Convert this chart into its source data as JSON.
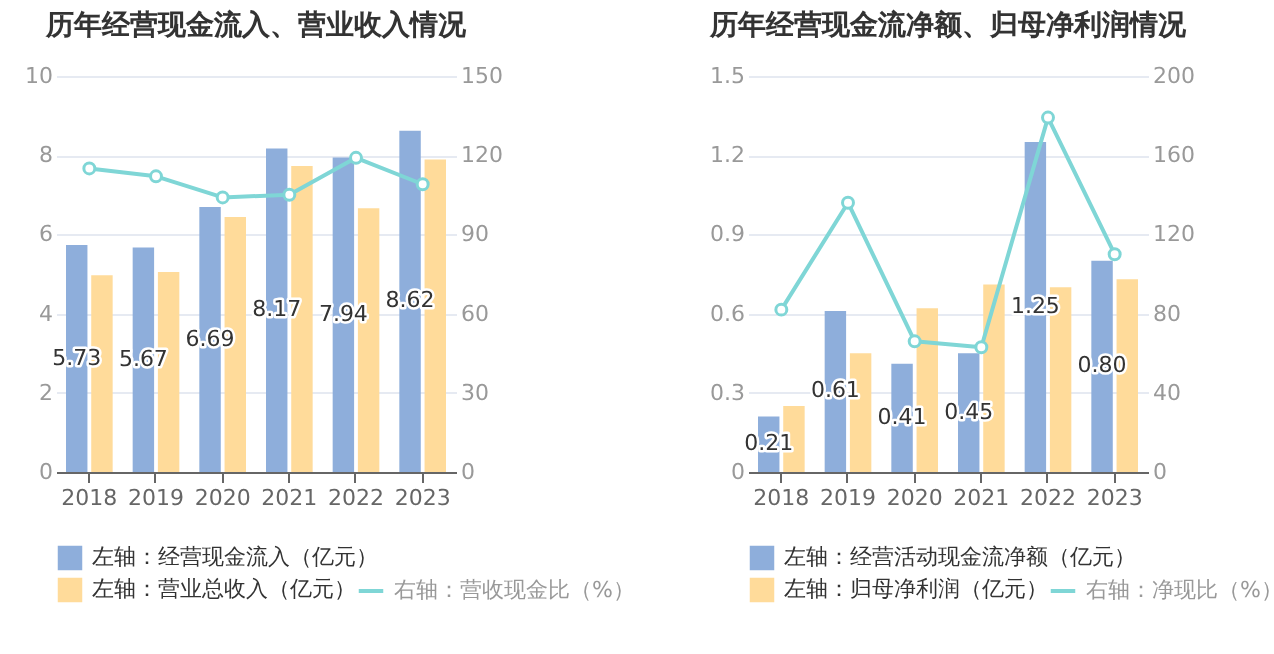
{
  "chart_data": [
    {
      "type": "bar",
      "title": "历年经营现金流入、营业收入情况",
      "categories": [
        "2018",
        "2019",
        "2020",
        "2021",
        "2022",
        "2023"
      ],
      "ylim": [
        0,
        10
      ],
      "yticks": [
        0,
        2,
        4,
        6,
        8,
        10
      ],
      "y2lim": [
        0,
        150
      ],
      "y2ticks": [
        0,
        30,
        60,
        90,
        120,
        150
      ],
      "grid": "y",
      "legend": "bottom",
      "marker": "circle",
      "series": [
        {
          "name": "左轴：经营现金流入（亿元）",
          "color": "#8eaedb",
          "values": [
            5.73,
            5.67,
            6.69,
            8.17,
            7.94,
            8.62
          ],
          "value_labels": [
            "5.73",
            "5.67",
            "6.69",
            "8.17",
            "7.94",
            "8.62"
          ]
        },
        {
          "name": "左轴：营业总收入（亿元）",
          "color": "#ffdb9a",
          "values": [
            4.97,
            5.05,
            6.44,
            7.73,
            6.66,
            7.89
          ]
        },
        {
          "name": "右轴：营收现金比（%）",
          "color": "#7fd6d6",
          "type": "line",
          "axis": "y2",
          "values": [
            115,
            112,
            104,
            105,
            119,
            109
          ]
        }
      ]
    },
    {
      "type": "bar",
      "title": "历年经营现金流净额、归母净利润情况",
      "categories": [
        "2018",
        "2019",
        "2020",
        "2021",
        "2022",
        "2023"
      ],
      "ylim": [
        0,
        1.5
      ],
      "yticks": [
        0,
        0.3,
        0.6,
        0.9,
        1.2,
        1.5
      ],
      "y2lim": [
        0,
        200
      ],
      "y2ticks": [
        0,
        40,
        80,
        120,
        160,
        200
      ],
      "grid": "y",
      "legend": "bottom",
      "marker": "circle",
      "series": [
        {
          "name": "左轴：经营活动现金流净额（亿元）",
          "color": "#8eaedb",
          "values": [
            0.21,
            0.61,
            0.41,
            0.45,
            1.25,
            0.8
          ],
          "value_labels": [
            "0.21",
            "0.61",
            "0.41",
            "0.45",
            "1.25",
            "0.80"
          ]
        },
        {
          "name": "左轴：归母净利润（亿元）",
          "color": "#ffdb9a",
          "values": [
            0.25,
            0.45,
            0.62,
            0.71,
            0.7,
            0.73
          ]
        },
        {
          "name": "右轴：净现比（%）",
          "color": "#7fd6d6",
          "type": "line",
          "axis": "y2",
          "values": [
            82,
            136,
            66,
            63,
            179,
            110
          ]
        }
      ]
    }
  ]
}
